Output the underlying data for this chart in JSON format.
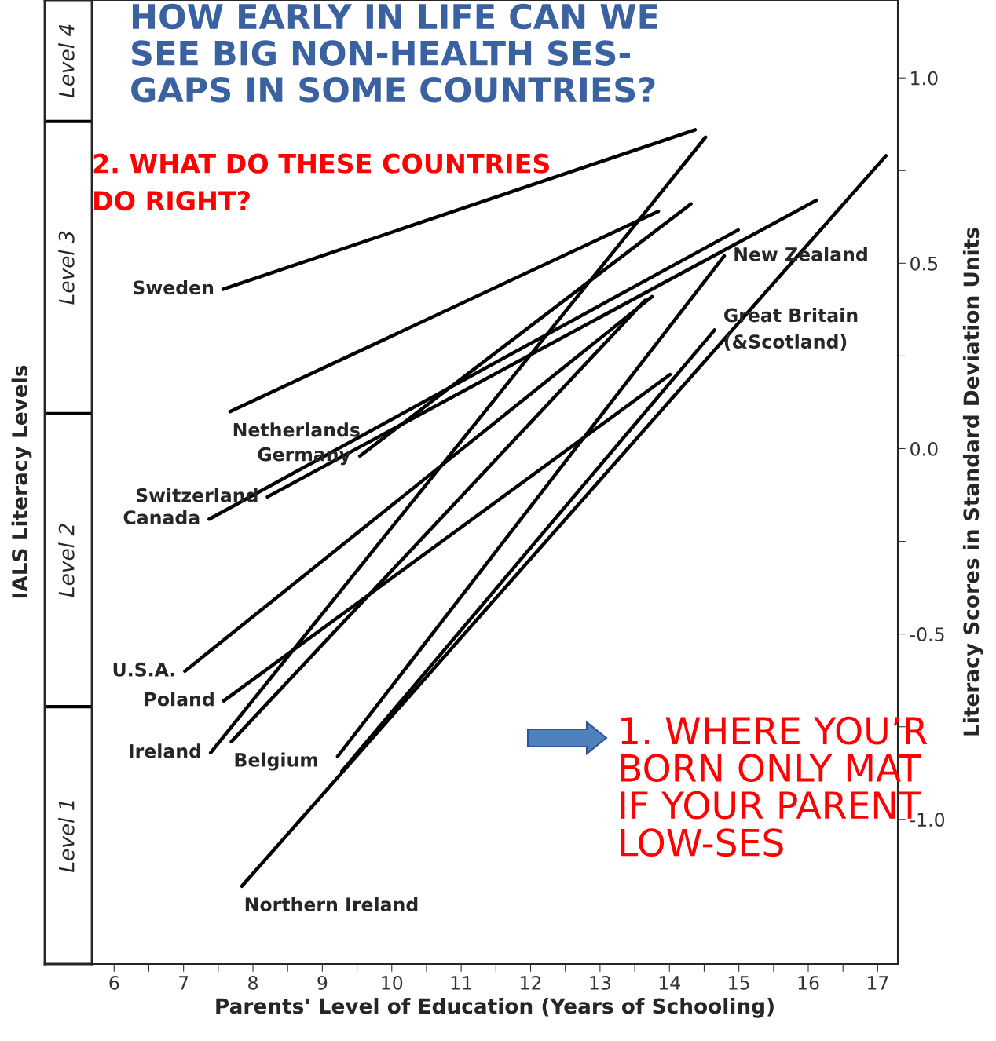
{
  "chart_data": {
    "type": "line",
    "title": "HOW EARLY IN LIFE CAN WE\nSEE BIG NON-HEALTH SES-\nGAPS IN SOME COUNTRIES?",
    "xlabel": "Parents' Level of Education (Years of Schooling)",
    "ylabel": "Literacy Scores in Standard Deviation Units",
    "series": [
      {
        "name": "Sweden",
        "color": "#000000",
        "x": [
          7.57,
          14.37
        ],
        "values": [
          0.43,
          0.86
        ]
      },
      {
        "name": "Netherlands",
        "color": "#000000",
        "x": [
          7.67,
          13.84
        ],
        "values": [
          0.1,
          0.64
        ]
      },
      {
        "name": "Germany",
        "color": "#000000",
        "x": [
          9.54,
          14.31
        ],
        "values": [
          -0.02,
          0.66
        ]
      },
      {
        "name": "Canada",
        "color": "#000000",
        "x": [
          7.37,
          14.99
        ],
        "values": [
          -0.19,
          0.59
        ]
      },
      {
        "name": "Switzerland",
        "color": "#000000",
        "x": [
          8.21,
          16.12
        ],
        "values": [
          -0.13,
          0.67
        ]
      },
      {
        "name": "U.S.A.",
        "color": "#000000",
        "x": [
          7.02,
          13.75
        ],
        "values": [
          -0.6,
          0.41
        ]
      },
      {
        "name": "Poland",
        "color": "#000000",
        "x": [
          7.58,
          14.01
        ],
        "values": [
          -0.68,
          0.2
        ]
      },
      {
        "name": "Ireland",
        "color": "#000000",
        "x": [
          7.39,
          14.52
        ],
        "values": [
          -0.82,
          0.84
        ]
      },
      {
        "name": "Belgium",
        "color": "#000000",
        "x": [
          7.69,
          13.65
        ],
        "values": [
          -0.79,
          0.4
        ]
      },
      {
        "name": "New Zealand",
        "color": "#000000",
        "x": [
          9.22,
          14.79
        ],
        "values": [
          -0.83,
          0.52
        ]
      },
      {
        "name": "Great Britain\n(&Scotland)",
        "color": "#000000",
        "x": [
          9.28,
          14.65
        ],
        "values": [
          -0.87,
          0.32
        ]
      },
      {
        "name": "Northern Ireland",
        "color": "#000000",
        "x": [
          7.84,
          17.12
        ],
        "values": [
          -1.18,
          0.79
        ]
      }
    ],
    "annotations": [
      "2. WHAT DO THESE COUNTRIES\nDO RIGHT?",
      "1. WHERE YOU’R\nBORN ONLY MAT\nIF YOUR PARENT\nLOW-SES",
      "Level 1",
      "Level 2",
      "Level 3",
      "Level 4"
    ],
    "y2label": "IALS Literacy Levels",
    "xlim": [
      5.68,
      17.29
    ],
    "ylim": [
      -1.39,
      1.21
    ],
    "xticks": [
      6,
      {
        "value": 6.5,
        "label": null
      },
      7,
      {
        "value": 7.5,
        "label": null
      },
      8,
      {
        "value": 8.5,
        "label": null
      },
      9,
      {
        "value": 9.5,
        "label": null
      },
      10,
      {
        "value": 10.5,
        "label": null
      },
      11,
      {
        "value": 11.5,
        "label": null
      },
      12,
      {
        "value": 12.5,
        "label": null
      },
      13,
      {
        "value": 13.5,
        "label": null
      },
      14,
      {
        "value": 14.5,
        "label": null
      },
      15,
      {
        "value": 15.5,
        "label": null
      },
      16,
      {
        "value": 16.5,
        "label": null
      },
      17
    ],
    "yticks": [
      {
        "value": -1.0,
        "label": "-1.0"
      },
      {
        "value": -0.75,
        "label": null
      },
      {
        "value": -0.5,
        "label": "-0.5"
      },
      {
        "value": -0.25,
        "label": null
      },
      {
        "value": 0.0,
        "label": "0.0"
      },
      {
        "value": 0.25,
        "label": null
      },
      {
        "value": 0.5,
        "label": "0.5"
      },
      {
        "value": 0.75,
        "label": null
      },
      {
        "value": 1.0,
        "label": "1.0"
      }
    ],
    "grid": false,
    "marker": "none",
    "line_style": "solid",
    "legend": false
  }
}
